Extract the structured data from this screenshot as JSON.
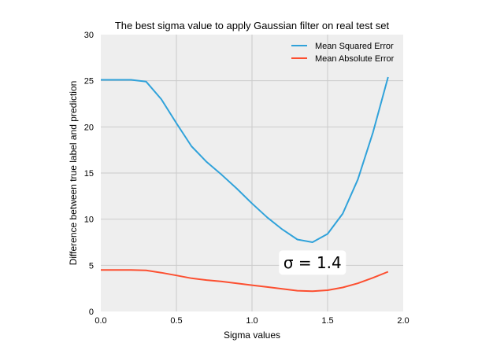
{
  "chart_data": {
    "type": "line",
    "title": "The best sigma value to apply Gaussian filter on real test set",
    "xlabel": "Sigma values",
    "ylabel": "Difference between true label and prediction",
    "xlim": [
      0.0,
      2.0
    ],
    "ylim": [
      0,
      30
    ],
    "xticks": [
      "0.0",
      "0.5",
      "1.0",
      "1.5",
      "2.0"
    ],
    "yticks": [
      "0",
      "5",
      "10",
      "15",
      "20",
      "25",
      "30"
    ],
    "x_gridlines": [
      0.5,
      1.0,
      1.5
    ],
    "y_gridlines": [
      5,
      10,
      15,
      20,
      25
    ],
    "grid": true,
    "background": "#eeeeee",
    "legend_position": "top-right",
    "x": [
      0.0,
      0.1,
      0.2,
      0.3,
      0.4,
      0.5,
      0.6,
      0.7,
      0.8,
      0.9,
      1.0,
      1.1,
      1.2,
      1.3,
      1.4,
      1.5,
      1.6,
      1.7,
      1.8,
      1.9
    ],
    "series": [
      {
        "name": "Mean Squared Error",
        "color": "#30a2da",
        "values": [
          25.1,
          25.1,
          25.1,
          24.9,
          23.0,
          20.4,
          17.9,
          16.2,
          14.8,
          13.3,
          11.7,
          10.2,
          8.9,
          7.8,
          7.5,
          8.4,
          10.6,
          14.3,
          19.4,
          25.4
        ]
      },
      {
        "name": "Mean Absolute Error",
        "color": "#fc4f30",
        "values": [
          4.5,
          4.5,
          4.5,
          4.45,
          4.2,
          3.9,
          3.6,
          3.4,
          3.25,
          3.05,
          2.85,
          2.65,
          2.45,
          2.25,
          2.2,
          2.3,
          2.6,
          3.05,
          3.65,
          4.3
        ]
      }
    ],
    "annotation": {
      "text": "σ = 1.4",
      "x": 1.4,
      "y": 5.3
    }
  }
}
